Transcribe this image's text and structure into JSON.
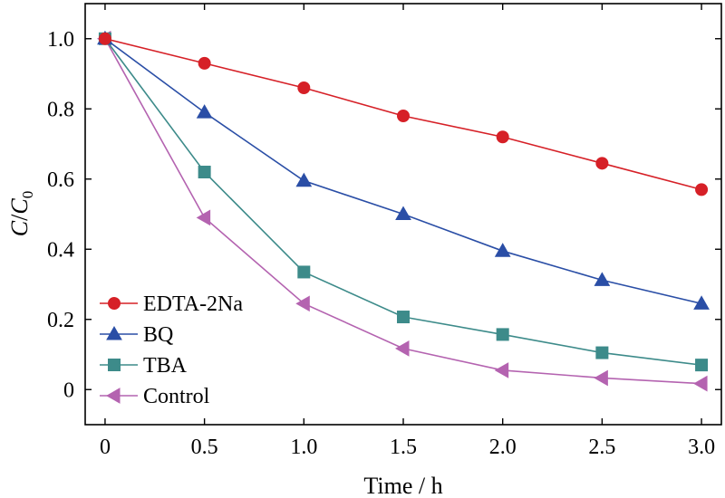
{
  "chart_data": {
    "type": "line",
    "xlabel": "Time / h",
    "ylabel_main": "C",
    "ylabel_slash": "/",
    "ylabel_denom": "C",
    "ylabel_sub": "0",
    "xlim": [
      -0.1,
      3.1
    ],
    "ylim": [
      -0.1,
      1.1
    ],
    "x_ticks": [
      0,
      0.5,
      1.0,
      1.5,
      2.0,
      2.5,
      3.0
    ],
    "x_tick_labels": [
      "0",
      "0.5",
      "1.0",
      "1.5",
      "2.0",
      "2.5",
      "3.0"
    ],
    "y_ticks": [
      0,
      0.2,
      0.4,
      0.6,
      0.8,
      1.0
    ],
    "y_tick_labels": [
      "0",
      "0.2",
      "0.4",
      "0.6",
      "0.8",
      "1.0"
    ],
    "grid": false,
    "legend_position": "bottom-left",
    "x": [
      0,
      0.5,
      1.0,
      1.5,
      2.0,
      2.5,
      3.0
    ],
    "series": [
      {
        "name": "EDTA-2Na",
        "marker": "circle",
        "color": "#d62027",
        "line_color": "#d62027",
        "values": [
          1.0,
          0.93,
          0.86,
          0.78,
          0.72,
          0.645,
          0.57
        ]
      },
      {
        "name": "BQ",
        "marker": "triangle-up",
        "color": "#2a4ea6",
        "line_color": "#2a4ea6",
        "values": [
          1.0,
          0.79,
          0.595,
          0.5,
          0.395,
          0.312,
          0.245
        ]
      },
      {
        "name": "TBA",
        "marker": "square",
        "color": "#3d8b8a",
        "line_color": "#3d8b8a",
        "values": [
          1.0,
          0.62,
          0.335,
          0.207,
          0.157,
          0.105,
          0.07
        ]
      },
      {
        "name": "Control",
        "marker": "triangle-left",
        "color": "#b463b0",
        "line_color": "#b463b0",
        "values": [
          1.0,
          0.49,
          0.245,
          0.117,
          0.055,
          0.033,
          0.017
        ]
      }
    ]
  }
}
